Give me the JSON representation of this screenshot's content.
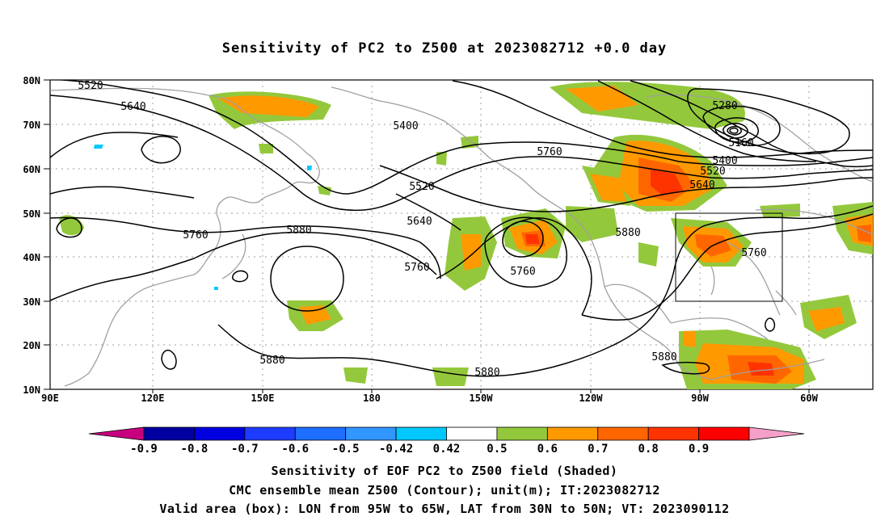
{
  "title": "Sensitivity of PC2 to Z500 at 2023082712 +0.0 day",
  "lat_labels": [
    "80N",
    "70N",
    "60N",
    "50N",
    "40N",
    "30N",
    "20N",
    "10N"
  ],
  "lon_labels": [
    "90E",
    "120E",
    "150E",
    "180",
    "150W",
    "120W",
    "90W",
    "60W"
  ],
  "contour_labels": [
    "5520",
    "5640",
    "5400",
    "5760",
    "5880",
    "5520",
    "5640",
    "5760",
    "5760",
    "5880",
    "5880",
    "5880",
    "5880",
    "5280",
    "5160",
    "5400",
    "5520",
    "5640",
    "5760",
    "5880"
  ],
  "colorbar": {
    "labels": [
      "-0.9",
      "-0.8",
      "-0.7",
      "-0.6",
      "-0.5",
      "-0.42",
      "0.42",
      "0.5",
      "0.6",
      "0.7",
      "0.8",
      "0.9"
    ],
    "colors": [
      "#c8007f",
      "#0000a0",
      "#0000e0",
      "#1e3cff",
      "#1e6eff",
      "#3296ff",
      "#00c8ff",
      "#ffffff",
      "#94c83c",
      "#ff9900",
      "#ff6600",
      "#ff3300",
      "#ff0000",
      "#f5a0c8"
    ]
  },
  "captions": {
    "line1": "Sensitivity of EOF PC2 to Z500 field (Shaded)",
    "line2": "CMC ensemble mean Z500 (Contour); unit(m); IT:2023082712",
    "line3": "Valid area (box): LON from 95W to 65W, LAT from 30N to 50N; VT: 2023090112"
  },
  "colors": {
    "contour": "#000000",
    "coast": "#a0a0a0",
    "grid": "#a0a0a0",
    "green": "#94c83c",
    "orange": "#ff9900",
    "dark_orange": "#ff6600",
    "red": "#ff3300",
    "cyan": "#00c8ff"
  }
}
